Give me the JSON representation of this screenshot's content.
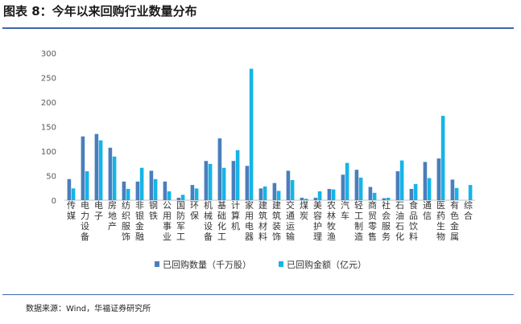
{
  "figure_title": "图表 8：今年以来回购行业数量分布",
  "source_note": "数据来源：Wind，华福证券研究所",
  "colors": {
    "rule": "#3f67ad",
    "series1": "#4a7ebb",
    "series2": "#16b4e8"
  },
  "chart_data": {
    "type": "bar",
    "categories": [
      "传媒",
      "电力设备",
      "电子",
      "房地产",
      "纺织服饰",
      "非银金融",
      "钢铁",
      "公用事业",
      "国防军工",
      "环保",
      "机械设备",
      "基础化工",
      "计算机",
      "家用电器",
      "建筑材料",
      "建筑装饰",
      "交通运输",
      "煤炭",
      "美容护理",
      "农林牧渔",
      "汽车",
      "轻工制造",
      "商贸零售",
      "社会服务",
      "石油石化",
      "食品饮料",
      "通信",
      "医药生物",
      "有色金属",
      "综合"
    ],
    "series": [
      {
        "name": "已回购数量（千万股）",
        "values": [
          43,
          130,
          135,
          107,
          38,
          38,
          60,
          38,
          5,
          31,
          80,
          126,
          80,
          70,
          24,
          35,
          60,
          5,
          5,
          23,
          52,
          62,
          27,
          4,
          59,
          23,
          78,
          85,
          42,
          0
        ]
      },
      {
        "name": "已回购金额（亿元）",
        "values": [
          24,
          59,
          122,
          89,
          23,
          66,
          43,
          18,
          11,
          24,
          74,
          66,
          102,
          268,
          28,
          19,
          41,
          3,
          18,
          22,
          76,
          46,
          15,
          5,
          81,
          33,
          45,
          172,
          25,
          31
        ]
      }
    ],
    "ylim": [
      0,
      300
    ],
    "yticks": [
      0,
      50,
      100,
      150,
      200,
      250,
      300
    ],
    "legend_position": "bottom",
    "grid": false
  }
}
